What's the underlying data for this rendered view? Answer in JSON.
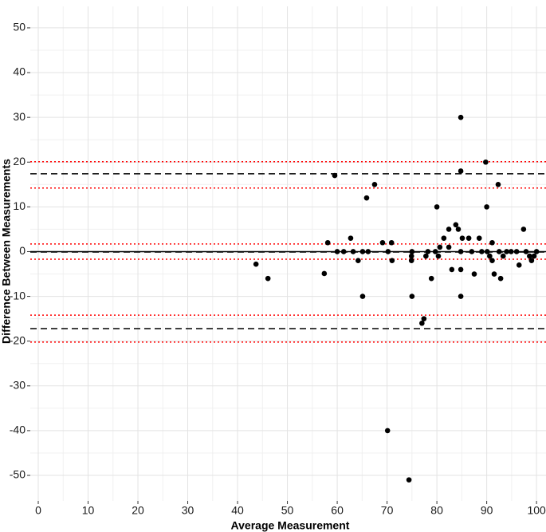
{
  "chart_data": {
    "type": "scatter",
    "xlabel": "Average Measurement",
    "ylabel": "Difference Between Measurements",
    "xlim": [
      -1.6,
      101.9
    ],
    "ylim": [
      -55.7,
      54.8
    ],
    "xticks": [
      0,
      10,
      20,
      30,
      40,
      50,
      60,
      70,
      80,
      90,
      100
    ],
    "yticks": [
      -50,
      -40,
      -30,
      -20,
      -10,
      0,
      10,
      20,
      30,
      40,
      50
    ],
    "grid": true,
    "point_color": "#000000",
    "hlines": [
      {
        "value": 0,
        "style": "solid",
        "color": "#000000"
      },
      {
        "value": -0.1,
        "style": "dashed",
        "color": "#000000"
      },
      {
        "value": 1.7,
        "style": "dotted",
        "color": "#ff0000"
      },
      {
        "value": -1.7,
        "style": "dotted",
        "color": "#ff0000"
      },
      {
        "value": 17.4,
        "style": "dashed",
        "color": "#000000"
      },
      {
        "value": 20.1,
        "style": "dotted",
        "color": "#ff0000"
      },
      {
        "value": 14.2,
        "style": "dotted",
        "color": "#ff0000"
      },
      {
        "value": -17.2,
        "style": "dashed",
        "color": "#000000"
      },
      {
        "value": -14.2,
        "style": "dotted",
        "color": "#ff0000"
      },
      {
        "value": -20.2,
        "style": "dotted",
        "color": "#ff0000"
      }
    ],
    "x": [
      43.7,
      46.1,
      57.4,
      58.1,
      59.5,
      60,
      61.3,
      62.7,
      63.2,
      64.2,
      65.1,
      65.1,
      65.9,
      66.2,
      67.5,
      69.1,
      70.1,
      70.2,
      70.9,
      71,
      74.4,
      74.9,
      74.9,
      75,
      75,
      77,
      77.4,
      77.8,
      78.2,
      78.9,
      79.7,
      80,
      80.3,
      80.6,
      81.4,
      82.4,
      82.4,
      83,
      83.8,
      84.3,
      84.8,
      84.8,
      84.8,
      84.8,
      84.8,
      85.1,
      86.4,
      87,
      87.5,
      88.5,
      89,
      89.8,
      90,
      90.1,
      90.6,
      91.1,
      91.1,
      91.5,
      92.3,
      92.5,
      92.8,
      93.3,
      94,
      94.9,
      96,
      96.5,
      97.4,
      97.9,
      98.6,
      99,
      99.5,
      100
    ],
    "y": [
      -2.8,
      -6,
      -4.9,
      2,
      17,
      0,
      0,
      3,
      0,
      -2,
      -10,
      0,
      12,
      0,
      15,
      2,
      -40,
      0,
      2,
      -2,
      -51,
      -1,
      -2,
      0,
      -10,
      -16,
      -15,
      -1,
      0,
      -6,
      0,
      10,
      -1,
      1,
      3,
      5,
      1,
      -4,
      6,
      5,
      30,
      18,
      0,
      -4,
      -10,
      3,
      3,
      0,
      -5,
      3,
      0,
      20,
      10,
      0,
      -1,
      2,
      -2,
      -5,
      15,
      0,
      -6,
      -1,
      0,
      0,
      0,
      -3,
      5,
      0,
      -1,
      -2,
      -1,
      0
    ]
  }
}
